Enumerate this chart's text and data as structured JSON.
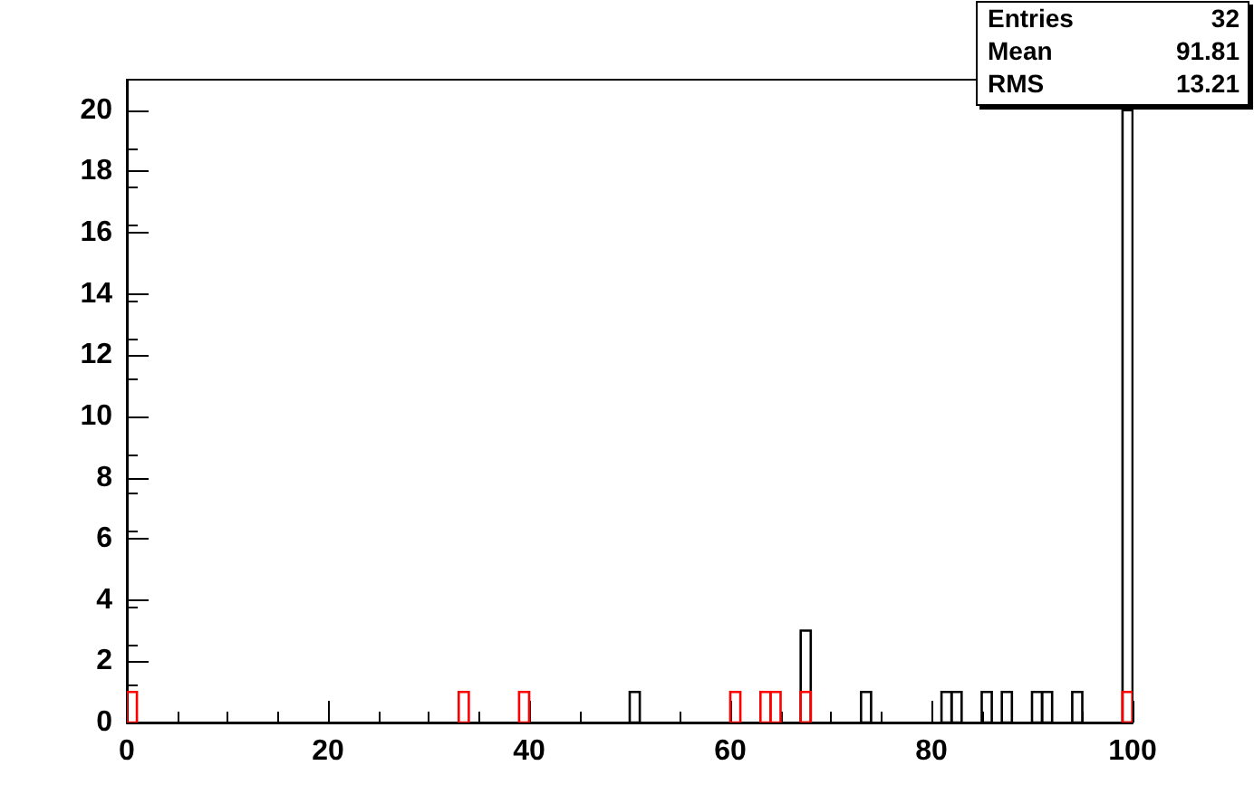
{
  "chart_data": {
    "type": "histogram",
    "bins": [
      0,
      1,
      2,
      3,
      4,
      5,
      6,
      7,
      8,
      9,
      10,
      11,
      12,
      13,
      14,
      15,
      16,
      17,
      18,
      19,
      20,
      21,
      22,
      23,
      24,
      25,
      26,
      27,
      28,
      29,
      30,
      31,
      32,
      33,
      34,
      35,
      36,
      37,
      38,
      39,
      40,
      41,
      42,
      43,
      44,
      45,
      46,
      47,
      48,
      49,
      50,
      51,
      52,
      53,
      54,
      55,
      56,
      57,
      58,
      59,
      60,
      61,
      62,
      63,
      64,
      65,
      66,
      67,
      68,
      69,
      70,
      71,
      72,
      73,
      74,
      75,
      76,
      77,
      78,
      79,
      80,
      81,
      82,
      83,
      84,
      85,
      86,
      87,
      88,
      89,
      90,
      91,
      92,
      93,
      94,
      95,
      96,
      97,
      98,
      99,
      100
    ],
    "series": [
      {
        "color": "#000000",
        "values": [
          0,
          0,
          0,
          0,
          0,
          0,
          0,
          0,
          0,
          0,
          0,
          0,
          0,
          0,
          0,
          0,
          0,
          0,
          0,
          0,
          0,
          0,
          0,
          0,
          0,
          0,
          0,
          0,
          0,
          0,
          0,
          0,
          0,
          0,
          0,
          0,
          0,
          0,
          0,
          0,
          0,
          0,
          0,
          0,
          0,
          0,
          0,
          0,
          0,
          0,
          1,
          0,
          0,
          0,
          0,
          0,
          0,
          0,
          0,
          0,
          0,
          0,
          0,
          0,
          0,
          0,
          0,
          3,
          0,
          0,
          0,
          0,
          0,
          1,
          0,
          0,
          0,
          0,
          0,
          0,
          0,
          1,
          1,
          0,
          0,
          1,
          0,
          1,
          0,
          0,
          1,
          1,
          0,
          0,
          1,
          0,
          0,
          0,
          0,
          20
        ]
      },
      {
        "color": "#ff0000",
        "values": [
          1,
          0,
          0,
          0,
          0,
          0,
          0,
          0,
          0,
          0,
          0,
          0,
          0,
          0,
          0,
          0,
          0,
          0,
          0,
          0,
          0,
          0,
          0,
          0,
          0,
          0,
          0,
          0,
          0,
          0,
          0,
          0,
          0,
          1,
          0,
          0,
          0,
          0,
          0,
          1,
          0,
          0,
          0,
          0,
          0,
          0,
          0,
          0,
          0,
          0,
          0,
          0,
          0,
          0,
          0,
          0,
          0,
          0,
          0,
          0,
          1,
          0,
          0,
          1,
          1,
          0,
          0,
          1,
          0,
          0,
          0,
          0,
          0,
          0,
          0,
          0,
          0,
          0,
          0,
          0,
          0,
          0,
          0,
          0,
          0,
          0,
          0,
          0,
          0,
          0,
          0,
          0,
          0,
          0,
          0,
          0,
          0,
          0,
          0,
          1
        ]
      }
    ],
    "xlim": [
      0,
      100
    ],
    "xticks": [
      0,
      20,
      40,
      60,
      80,
      100
    ],
    "ylim": [
      0,
      21
    ],
    "yticks": [
      0,
      2,
      4,
      6,
      8,
      10,
      12,
      14,
      16,
      18,
      20
    ],
    "grid": false,
    "annotations": [
      "Entries",
      "32",
      "Mean",
      "91.81",
      "RMS",
      "13.21"
    ]
  }
}
